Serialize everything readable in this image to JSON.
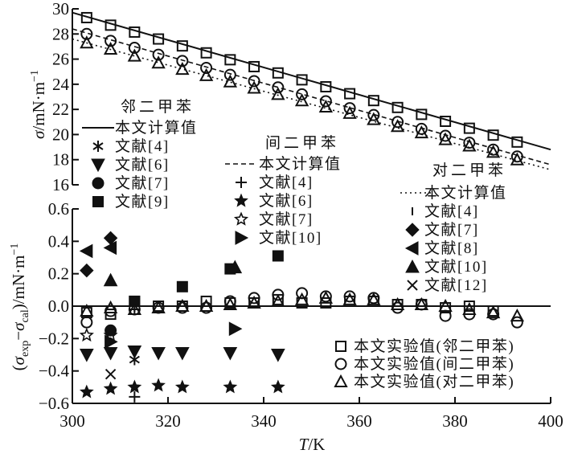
{
  "chart_data": [
    {
      "type": "line",
      "panel": "top",
      "ylabel": "σ/mN·m⁻¹",
      "xlim": [
        300,
        400
      ],
      "ylim": [
        16,
        30
      ],
      "yticks": [
        16,
        18,
        20,
        22,
        24,
        26,
        28,
        30
      ],
      "grid": false,
      "series": [
        {
          "name": "本文计算值",
          "group": "o",
          "style": "solid",
          "x": [
            300,
            400
          ],
          "y": [
            29.7,
            18.8
          ]
        },
        {
          "name": "本文计算值",
          "group": "m",
          "style": "dashed",
          "x": [
            300,
            400
          ],
          "y": [
            28.4,
            17.6
          ]
        },
        {
          "name": "本文计算值",
          "group": "p",
          "style": "dotted",
          "x": [
            300,
            400
          ],
          "y": [
            27.6,
            17.2
          ]
        },
        {
          "group": "o",
          "marker": "open-square",
          "x": [
            303,
            308,
            313,
            318,
            323,
            328,
            333,
            338,
            343,
            348,
            353,
            358,
            363,
            368,
            373,
            378,
            383,
            388,
            393
          ],
          "y": [
            29.3,
            28.7,
            28.15,
            27.6,
            27.05,
            26.5,
            25.95,
            25.4,
            24.9,
            24.35,
            23.8,
            23.25,
            22.7,
            22.15,
            21.6,
            21.05,
            20.5,
            19.95,
            19.4
          ]
        },
        {
          "group": "m",
          "marker": "open-circle",
          "x": [
            303,
            308,
            313,
            318,
            323,
            328,
            333,
            338,
            343,
            348,
            353,
            358,
            363,
            368,
            373,
            378,
            383,
            388,
            393
          ],
          "y": [
            28.0,
            27.45,
            26.9,
            26.35,
            25.85,
            25.3,
            24.75,
            24.25,
            23.75,
            23.2,
            22.65,
            22.1,
            21.55,
            21.0,
            20.45,
            19.9,
            19.35,
            18.8,
            18.25
          ]
        },
        {
          "group": "p",
          "marker": "open-triangle",
          "x": [
            303,
            308,
            313,
            318,
            323,
            328,
            333,
            338,
            343,
            348,
            353,
            358,
            363,
            368,
            373,
            378,
            383,
            388,
            393
          ],
          "y": [
            27.3,
            26.8,
            26.25,
            25.7,
            25.2,
            24.7,
            24.2,
            23.7,
            23.2,
            22.7,
            22.2,
            21.7,
            21.2,
            20.65,
            20.15,
            19.6,
            19.1,
            18.6,
            18.0
          ]
        }
      ]
    },
    {
      "type": "scatter",
      "panel": "bottom",
      "xlabel": "T/K",
      "ylabel": "(σexp−σcal)/mN·m⁻¹",
      "xlim": [
        300,
        400
      ],
      "ylim": [
        -0.6,
        0.6
      ],
      "xticks": [
        300,
        320,
        340,
        360,
        380,
        400
      ],
      "yticks": [
        -0.6,
        -0.4,
        -0.2,
        0.0,
        0.2,
        0.4,
        0.6
      ],
      "grid": false,
      "series": [
        {
          "name": "本文实验值(邻二甲苯)",
          "marker": "open-square",
          "x": [
            303,
            308,
            313,
            318,
            323,
            328,
            333,
            338,
            343,
            348,
            353,
            358,
            363,
            368,
            373,
            378,
            383,
            388
          ],
          "y": [
            -0.04,
            -0.05,
            0.03,
            0.0,
            0.0,
            0.03,
            0.02,
            0.02,
            0.04,
            0.02,
            0.02,
            0.03,
            0.03,
            0.01,
            0.01,
            -0.01,
            0.0,
            -0.03
          ]
        },
        {
          "name": "本文实验值(间二甲苯)",
          "marker": "open-circle",
          "x": [
            303,
            308,
            313,
            318,
            323,
            328,
            333,
            338,
            343,
            348,
            353,
            358,
            363,
            368,
            373,
            378,
            383,
            388,
            393
          ],
          "y": [
            -0.1,
            -0.03,
            -0.02,
            -0.01,
            -0.01,
            -0.01,
            0.03,
            0.05,
            0.07,
            0.08,
            0.06,
            0.06,
            0.05,
            -0.01,
            0.01,
            -0.06,
            -0.05,
            -0.05,
            -0.1
          ]
        },
        {
          "name": "本文实验值(对二甲苯)",
          "marker": "open-triangle",
          "x": [
            303,
            308,
            313,
            318,
            323,
            328,
            333,
            338,
            343,
            348,
            353,
            358,
            363,
            368,
            373,
            378,
            383,
            388,
            393
          ],
          "y": [
            -0.03,
            -0.01,
            -0.02,
            -0.01,
            0.0,
            0.0,
            0.01,
            0.02,
            0.03,
            0.04,
            0.05,
            0.04,
            0.04,
            0.01,
            0.01,
            0.0,
            -0.02,
            -0.04,
            -0.06
          ]
        },
        {
          "name": "文献[4]",
          "group": "o",
          "marker": "asterisk",
          "x": [
            313
          ],
          "y": [
            -0.33
          ]
        },
        {
          "name": "文献[6]",
          "group": "o",
          "marker": "down-triangle",
          "x": [
            303,
            308,
            313,
            318,
            323,
            333,
            343
          ],
          "y": [
            -0.3,
            -0.29,
            -0.28,
            -0.29,
            -0.29,
            -0.29,
            -0.3
          ]
        },
        {
          "name": "文献[7]",
          "group": "o",
          "marker": "filled-circle",
          "x": [
            308
          ],
          "y": [
            -0.15
          ]
        },
        {
          "name": "文献[9]",
          "group": "o",
          "marker": "filled-square",
          "x": [
            313,
            323,
            333,
            343
          ],
          "y": [
            0.03,
            0.12,
            0.23,
            0.31
          ]
        },
        {
          "name": "文献[4]",
          "group": "m",
          "marker": "plus",
          "x": [
            313,
            313
          ],
          "y": [
            -0.56,
            -0.02
          ]
        },
        {
          "name": "文献[6]",
          "group": "m",
          "marker": "filled-star",
          "x": [
            303,
            308,
            313,
            318,
            323,
            333,
            343
          ],
          "y": [
            -0.53,
            -0.51,
            -0.5,
            -0.49,
            -0.5,
            -0.5,
            -0.5
          ]
        },
        {
          "name": "文献[7]",
          "group": "m",
          "marker": "open-star",
          "x": [
            303,
            308
          ],
          "y": [
            -0.18,
            -0.18
          ]
        },
        {
          "name": "文献[10]",
          "group": "m",
          "marker": "right-triangle",
          "x": [
            308,
            334
          ],
          "y": [
            -0.22,
            -0.14
          ]
        },
        {
          "name": "文献[4]",
          "group": "p",
          "marker": "vbar",
          "x": [
            313
          ],
          "y": [
            -0.01
          ]
        },
        {
          "name": "文献[7]",
          "group": "p",
          "marker": "diamond",
          "x": [
            303,
            308
          ],
          "y": [
            0.22,
            0.42
          ]
        },
        {
          "name": "文献[8]",
          "group": "p",
          "marker": "left-triangle",
          "x": [
            303,
            308
          ],
          "y": [
            0.34,
            0.36
          ]
        },
        {
          "name": "文献[10]",
          "group": "p",
          "marker": "up-triangle",
          "x": [
            308,
            334
          ],
          "y": [
            0.16,
            0.24
          ]
        },
        {
          "name": "文献[12]",
          "group": "p",
          "marker": "x",
          "x": [
            308
          ],
          "y": [
            -0.42
          ]
        }
      ]
    }
  ],
  "legends": {
    "o_title": "邻二甲苯",
    "m_title": "间二甲苯",
    "p_title": "对二甲苯"
  }
}
